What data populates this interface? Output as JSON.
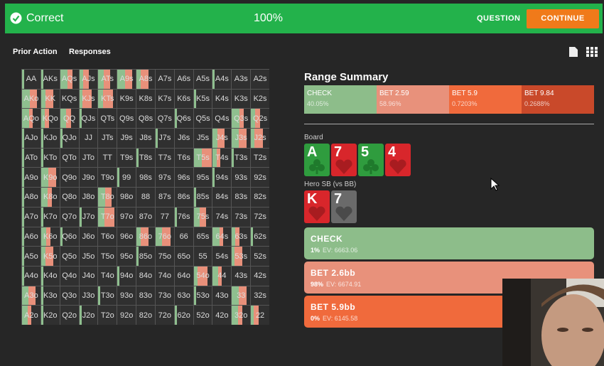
{
  "header": {
    "status": "Correct",
    "percent": "100%",
    "question": "QUESTION",
    "continue": "CONTINUE"
  },
  "tabs": [
    "Prior Action",
    "Responses"
  ],
  "grid": {
    "rows": [
      [
        "AA",
        "AKs",
        "AQs",
        "AJs",
        "ATs",
        "A9s",
        "A8s",
        "A7s",
        "A6s",
        "A5s",
        "A4s",
        "A3s",
        "A2s"
      ],
      [
        "AKo",
        "KK",
        "KQs",
        "KJs",
        "KTs",
        "K9s",
        "K8s",
        "K7s",
        "K6s",
        "K5s",
        "K4s",
        "K3s",
        "K2s"
      ],
      [
        "AQo",
        "KQo",
        "QQ",
        "QJs",
        "QTs",
        "Q9s",
        "Q8s",
        "Q7s",
        "Q6s",
        "Q5s",
        "Q4s",
        "Q3s",
        "Q2s"
      ],
      [
        "AJo",
        "KJo",
        "QJo",
        "JJ",
        "JTs",
        "J9s",
        "J8s",
        "J7s",
        "J6s",
        "J5s",
        "J4s",
        "J3s",
        "J2s"
      ],
      [
        "ATo",
        "KTo",
        "QTo",
        "JTo",
        "TT",
        "T9s",
        "T8s",
        "T7s",
        "T6s",
        "T5s",
        "T4s",
        "T3s",
        "T2s"
      ],
      [
        "A9o",
        "K9o",
        "Q9o",
        "J9o",
        "T9o",
        "99",
        "98s",
        "97s",
        "96s",
        "95s",
        "94s",
        "93s",
        "92s"
      ],
      [
        "A8o",
        "K8o",
        "Q8o",
        "J8o",
        "T8o",
        "98o",
        "88",
        "87s",
        "86s",
        "85s",
        "84s",
        "83s",
        "82s"
      ],
      [
        "A7o",
        "K7o",
        "Q7o",
        "J7o",
        "T7o",
        "97o",
        "87o",
        "77",
        "76s",
        "75s",
        "74s",
        "73s",
        "72s"
      ],
      [
        "A6o",
        "K6o",
        "Q6o",
        "J6o",
        "T6o",
        "96o",
        "86o",
        "76o",
        "66",
        "65s",
        "64s",
        "63s",
        "62s"
      ],
      [
        "A5o",
        "K5o",
        "Q5o",
        "J5o",
        "T5o",
        "95o",
        "85o",
        "75o",
        "65o",
        "55",
        "54s",
        "53s",
        "52s"
      ],
      [
        "A4o",
        "K4o",
        "Q4o",
        "J4o",
        "T4o",
        "94o",
        "84o",
        "74o",
        "64o",
        "54o",
        "44",
        "43s",
        "42s"
      ],
      [
        "A3o",
        "K3o",
        "Q3o",
        "J3o",
        "T3o",
        "93o",
        "83o",
        "73o",
        "63o",
        "53o",
        "43o",
        "33",
        "32s"
      ],
      [
        "A2o",
        "K2o",
        "Q2o",
        "J2o",
        "T2o",
        "92o",
        "82o",
        "72o",
        "62o",
        "52o",
        "42o",
        "32o",
        "22"
      ]
    ]
  },
  "summary": {
    "title": "Range Summary",
    "segments": [
      {
        "label": "CHECK",
        "percent": "40.05%"
      },
      {
        "label": "BET 2.59",
        "percent": "58.96%"
      },
      {
        "label": "BET 5.9",
        "percent": "0.7203%"
      },
      {
        "label": "BET 9.84",
        "percent": "0.2688%"
      }
    ]
  },
  "board": {
    "label": "Board",
    "cards": [
      {
        "rank": "A"
      },
      {
        "rank": "7"
      },
      {
        "rank": "5"
      },
      {
        "rank": "4"
      }
    ]
  },
  "hero": {
    "label": "Hero SB (vs BB)",
    "cards": [
      {
        "rank": "K"
      },
      {
        "rank": "7"
      }
    ]
  },
  "actions": [
    {
      "label": "CHECK",
      "freq": "1%",
      "ev": "EV: 6663.06"
    },
    {
      "label": "BET 2.6bb",
      "freq": "98%",
      "ev": "EV: 6674.91"
    },
    {
      "label": "BET 5.9bb",
      "freq": "0%",
      "ev": "EV: 6145.58"
    }
  ]
}
